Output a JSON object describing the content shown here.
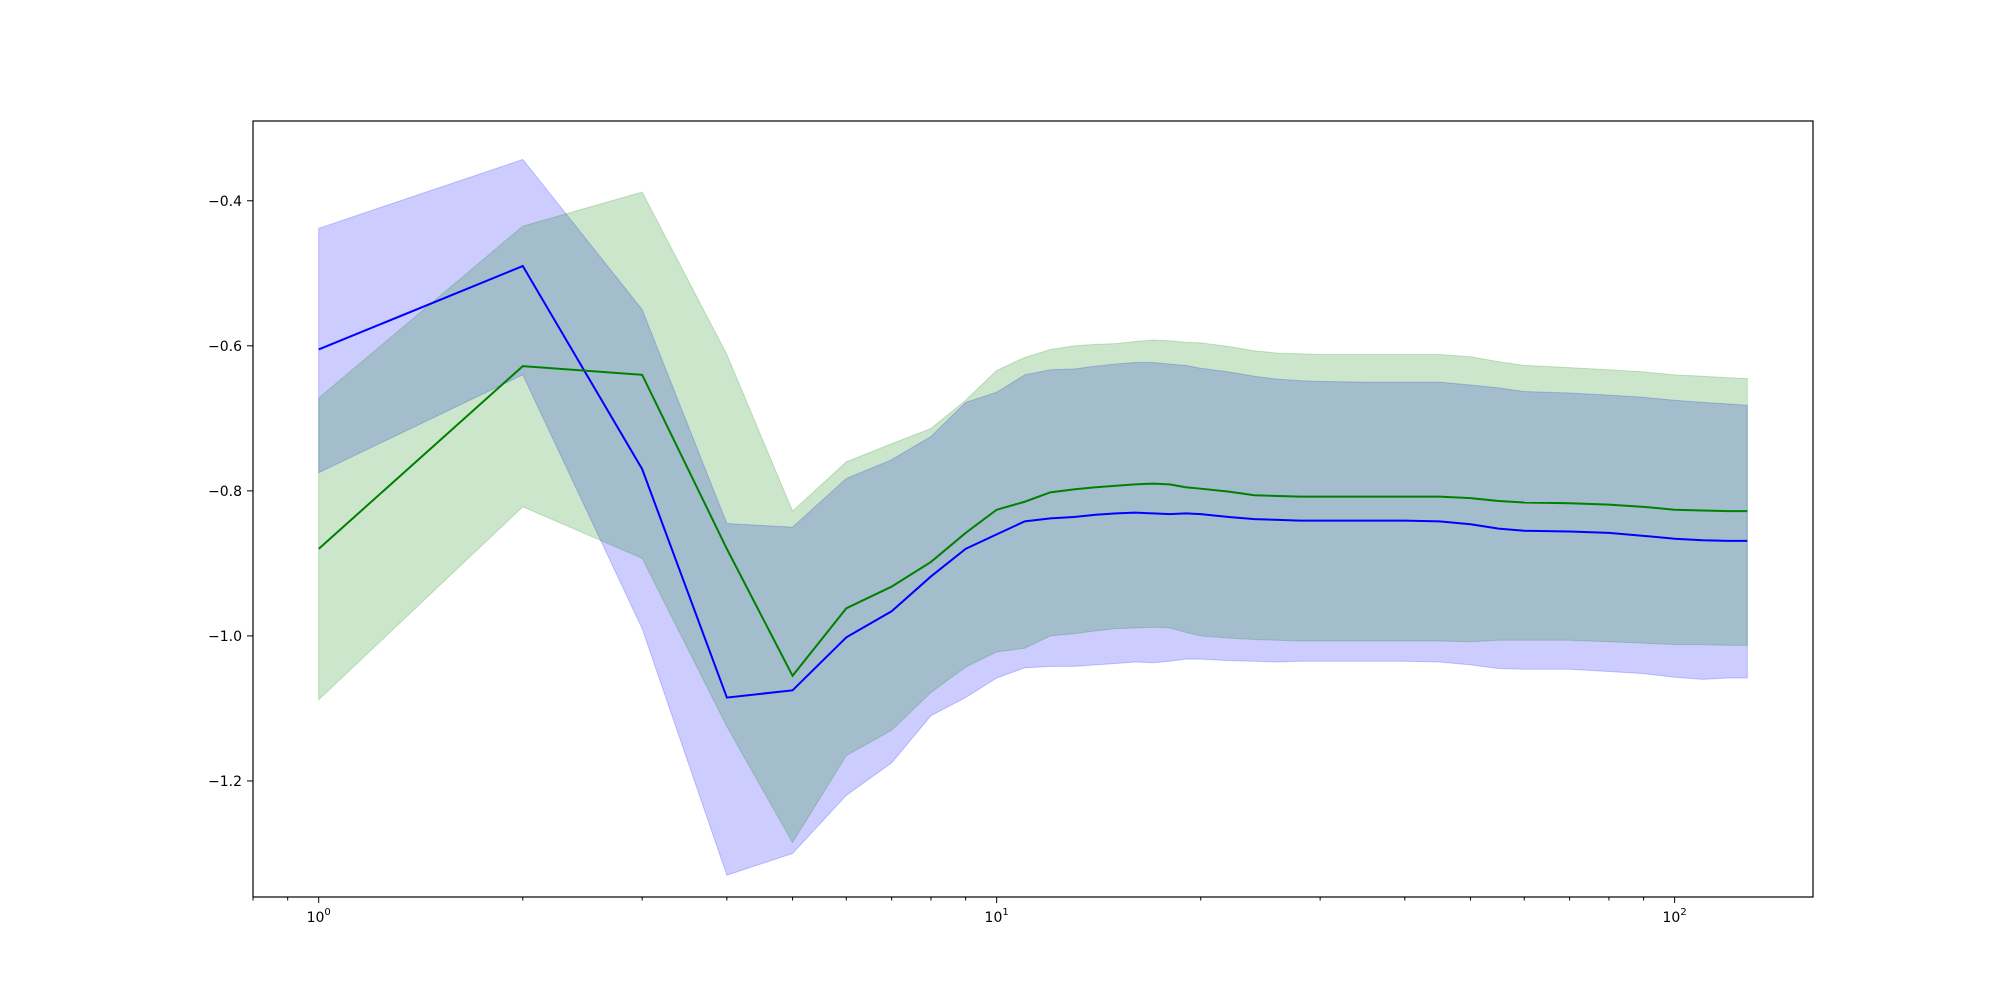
{
  "chart_data": {
    "type": "line",
    "title": "",
    "xlabel": "",
    "ylabel": "",
    "xscale": "log",
    "xlim": [
      0.8,
      160
    ],
    "ylim": [
      -1.36,
      -0.29
    ],
    "grid": false,
    "legend": "none",
    "x_tick_labels": [
      {
        "value": 1,
        "base": "10",
        "exp": "0"
      },
      {
        "value": 10,
        "base": "10",
        "exp": "1"
      },
      {
        "value": 100,
        "base": "10",
        "exp": "2"
      }
    ],
    "y_ticks": [
      -1.2,
      -1.0,
      -0.8,
      -0.6,
      -0.4
    ],
    "y_tick_labels": [
      "−1.2",
      "−1.0",
      "−0.8",
      "−0.6",
      "−0.4"
    ],
    "x": [
      1,
      2,
      3,
      4,
      5,
      6,
      7,
      8,
      9,
      10,
      11,
      12,
      13,
      14,
      15,
      16,
      17,
      18,
      19,
      20,
      22,
      24,
      26,
      28,
      30,
      35,
      40,
      45,
      50,
      55,
      60,
      70,
      80,
      90,
      100,
      110,
      120,
      128
    ],
    "series": [
      {
        "color": "#0000ff",
        "band_color": "#0000ff",
        "band_opacity": 0.2,
        "values": [
          -0.605,
          -0.49,
          -0.77,
          -1.085,
          -1.075,
          -1.002,
          -0.966,
          -0.918,
          -0.88,
          -0.86,
          -0.842,
          -0.838,
          -0.836,
          -0.833,
          -0.831,
          -0.83,
          -0.831,
          -0.832,
          -0.831,
          -0.832,
          -0.836,
          -0.839,
          -0.84,
          -0.841,
          -0.841,
          -0.841,
          -0.841,
          -0.842,
          -0.846,
          -0.852,
          -0.855,
          -0.856,
          -0.858,
          -0.862,
          -0.866,
          -0.868,
          -0.869,
          -0.869
        ],
        "lower": [
          -0.775,
          -0.64,
          -0.99,
          -1.33,
          -1.3,
          -1.22,
          -1.175,
          -1.11,
          -1.085,
          -1.058,
          -1.044,
          -1.042,
          -1.042,
          -1.04,
          -1.038,
          -1.036,
          -1.037,
          -1.035,
          -1.032,
          -1.032,
          -1.034,
          -1.035,
          -1.036,
          -1.035,
          -1.035,
          -1.035,
          -1.035,
          -1.036,
          -1.04,
          -1.045,
          -1.046,
          -1.046,
          -1.049,
          -1.052,
          -1.057,
          -1.06,
          -1.058,
          -1.058
        ],
        "upper": [
          -0.438,
          -0.343,
          -0.55,
          -0.845,
          -0.85,
          -0.783,
          -0.757,
          -0.725,
          -0.678,
          -0.664,
          -0.64,
          -0.633,
          -0.632,
          -0.628,
          -0.625,
          -0.623,
          -0.623,
          -0.625,
          -0.627,
          -0.631,
          -0.636,
          -0.642,
          -0.646,
          -0.648,
          -0.649,
          -0.65,
          -0.65,
          -0.65,
          -0.654,
          -0.658,
          -0.663,
          -0.665,
          -0.668,
          -0.671,
          -0.675,
          -0.678,
          -0.68,
          -0.682
        ]
      },
      {
        "color": "#008000",
        "band_color": "#008000",
        "band_opacity": 0.2,
        "values": [
          -0.88,
          -0.628,
          -0.64,
          -0.88,
          -1.055,
          -0.962,
          -0.932,
          -0.898,
          -0.858,
          -0.826,
          -0.815,
          -0.802,
          -0.798,
          -0.795,
          -0.793,
          -0.791,
          -0.79,
          -0.791,
          -0.795,
          -0.797,
          -0.801,
          -0.806,
          -0.807,
          -0.808,
          -0.808,
          -0.808,
          -0.808,
          -0.808,
          -0.81,
          -0.814,
          -0.816,
          -0.817,
          -0.819,
          -0.822,
          -0.826,
          -0.827,
          -0.828,
          -0.828
        ],
        "lower": [
          -1.088,
          -0.822,
          -0.893,
          -1.125,
          -1.285,
          -1.165,
          -1.13,
          -1.078,
          -1.043,
          -1.022,
          -1.017,
          -1.0,
          -0.997,
          -0.993,
          -0.99,
          -0.989,
          -0.988,
          -0.989,
          -0.995,
          -1.0,
          -1.003,
          -1.005,
          -1.006,
          -1.007,
          -1.007,
          -1.007,
          -1.007,
          -1.007,
          -1.008,
          -1.006,
          -1.006,
          -1.006,
          -1.008,
          -1.01,
          -1.012,
          -1.012,
          -1.013,
          -1.013
        ],
        "upper": [
          -0.672,
          -0.435,
          -0.388,
          -0.612,
          -0.828,
          -0.76,
          -0.735,
          -0.714,
          -0.675,
          -0.634,
          -0.616,
          -0.605,
          -0.6,
          -0.598,
          -0.597,
          -0.594,
          -0.592,
          -0.593,
          -0.595,
          -0.596,
          -0.601,
          -0.607,
          -0.61,
          -0.611,
          -0.612,
          -0.612,
          -0.612,
          -0.612,
          -0.615,
          -0.622,
          -0.627,
          -0.63,
          -0.633,
          -0.636,
          -0.64,
          -0.642,
          -0.644,
          -0.645
        ]
      }
    ]
  }
}
